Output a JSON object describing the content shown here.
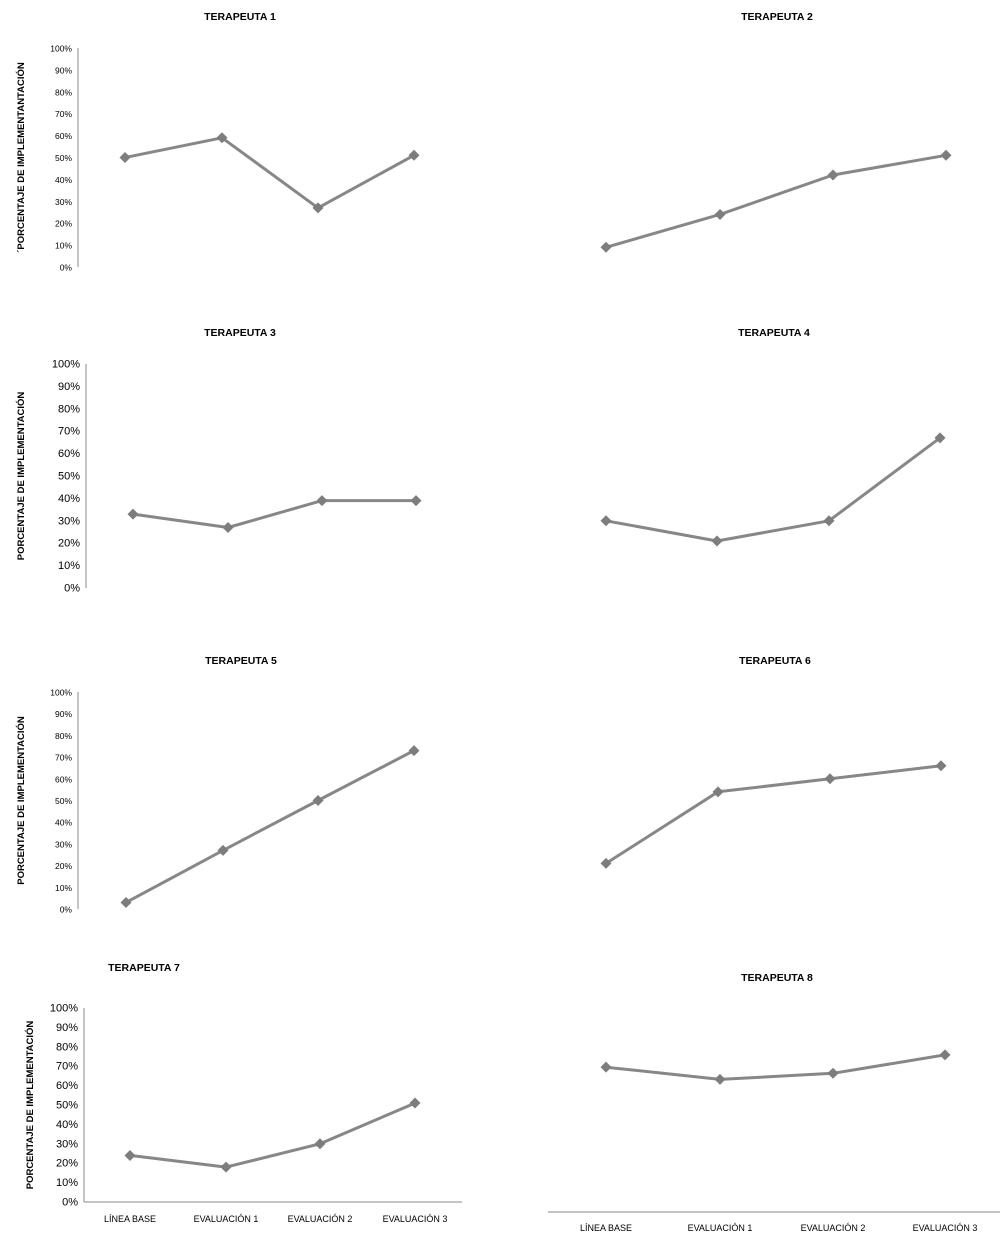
{
  "colors": {
    "series": "#878787",
    "marker": "#7d7d7d",
    "axis": "#8a8a8a",
    "text": "#000000"
  },
  "chart_data": [
    {
      "type": "line",
      "title": "TERAPEUTA 1",
      "ylabel": "´PORCENTAJE DE IMPLEMENTANTACIÓN",
      "categories": [
        "LÍNEA BASE",
        "EVALUACIÓN 1",
        "EVALUACIÓN 2",
        "EVALUACIÓN 3"
      ],
      "values": [
        50,
        59,
        27,
        51
      ],
      "ylim": [
        0,
        100
      ],
      "yticks": [
        "0%",
        "10%",
        "20%",
        "30%",
        "40%",
        "50%",
        "60%",
        "70%",
        "80%",
        "90%",
        "100%"
      ],
      "show_y_axis": true,
      "show_x_axis": false,
      "show_x_labels": false,
      "grid": false
    },
    {
      "type": "line",
      "title": "TERAPEUTA 2",
      "ylabel": "",
      "categories": [
        "LÍNEA BASE",
        "EVALUACIÓN 1",
        "EVALUACIÓN 2",
        "EVALUACIÓN 3"
      ],
      "values": [
        9,
        24,
        42,
        51
      ],
      "ylim": [
        0,
        100
      ],
      "yticks": [],
      "show_y_axis": false,
      "show_x_axis": false,
      "show_x_labels": false,
      "grid": false
    },
    {
      "type": "line",
      "title": "TERAPEUTA 3",
      "ylabel": "PORCENTAJE DE IMPLEMENTACIÓN",
      "categories": [
        "LÍNEA BASE",
        "EVALUACIÓN 1",
        "EVALUACIÓN 2",
        "EVALUACIÓN 3"
      ],
      "values": [
        33,
        27,
        39,
        39
      ],
      "ylim": [
        0,
        100
      ],
      "yticks": [
        "0%",
        "10%",
        "20%",
        "30%",
        "40%",
        "50%",
        "60%",
        "70%",
        "80%",
        "90%",
        "100%"
      ],
      "show_y_axis": true,
      "show_x_axis": false,
      "show_x_labels": false,
      "grid": false
    },
    {
      "type": "line",
      "title": "TERAPEUTA 4",
      "ylabel": "",
      "categories": [
        "LÍNEA BASE",
        "EVALUACIÓN 1",
        "EVALUACIÓN 2",
        "EVALUACIÓN 3"
      ],
      "values": [
        30,
        21,
        30,
        67
      ],
      "ylim": [
        0,
        100
      ],
      "yticks": [],
      "show_y_axis": false,
      "show_x_axis": false,
      "show_x_labels": false,
      "grid": false
    },
    {
      "type": "line",
      "title": "TERAPEUTA 5",
      "ylabel": "PORCENTAJE DE IMPLEMENTACIÓN",
      "categories": [
        "LÍNEA BASE",
        "EVALUACIÓN 1",
        "EVALUACIÓN 2",
        "EVALUACIÓN 3"
      ],
      "values": [
        3,
        27,
        50,
        73
      ],
      "ylim": [
        0,
        100
      ],
      "yticks": [
        "0%",
        "10%",
        "20%",
        "30%",
        "40%",
        "50%",
        "60%",
        "70%",
        "80%",
        "90%",
        "100%"
      ],
      "show_y_axis": true,
      "show_x_axis": false,
      "show_x_labels": false,
      "grid": false
    },
    {
      "type": "line",
      "title": "TERAPEUTA 6",
      "ylabel": "",
      "categories": [
        "LÍNEA BASE",
        "EVALUACIÓN 1",
        "EVALUACIÓN 2",
        "EVALUACIÓN 3"
      ],
      "values": [
        21,
        54,
        60,
        66
      ],
      "ylim": [
        0,
        100
      ],
      "yticks": [],
      "show_y_axis": false,
      "show_x_axis": false,
      "show_x_labels": false,
      "grid": false
    },
    {
      "type": "line",
      "title": "TERAPEUTA 7",
      "ylabel": "PORCENTAJE DE IMPLEMENTACIÓN",
      "categories": [
        "LÍNEA BASE",
        "EVALUACIÓN 1",
        "EVALUACIÓN 2",
        "EVALUACIÓN 3"
      ],
      "values": [
        24,
        18,
        30,
        51
      ],
      "ylim": [
        0,
        100
      ],
      "yticks": [
        "0%",
        "10%",
        "20%",
        "30%",
        "40%",
        "50%",
        "60%",
        "70%",
        "80%",
        "90%",
        "100%"
      ],
      "show_y_axis": true,
      "show_x_axis": true,
      "show_x_labels": true,
      "grid": false
    },
    {
      "type": "line",
      "title": "TERAPEUTA 8",
      "ylabel": "",
      "categories": [
        "LÍNEA BASE",
        "EVALUACIÓN 1",
        "EVALUACIÓN 2",
        "EVALUACIÓN 3"
      ],
      "values": [
        71,
        65,
        68,
        77
      ],
      "ylim": [
        0,
        100
      ],
      "yticks": [],
      "show_y_axis": false,
      "show_x_axis": true,
      "show_x_labels": true,
      "grid": false
    }
  ]
}
